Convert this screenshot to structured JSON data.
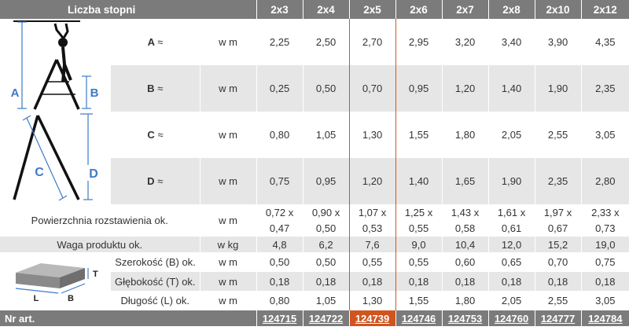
{
  "header": {
    "label": "Liczba stopni",
    "columns": [
      "2x3",
      "2x4",
      "2x5",
      "2x6",
      "2x7",
      "2x8",
      "2x10",
      "2x12"
    ]
  },
  "highlight_index": 2,
  "dimensions": [
    {
      "letter": "A",
      "approx": "≈",
      "unit": "w m",
      "values": [
        "2,25",
        "2,50",
        "2,70",
        "2,95",
        "3,20",
        "3,40",
        "3,90",
        "4,35"
      ]
    },
    {
      "letter": "B",
      "approx": "≈",
      "unit": "w m",
      "values": [
        "0,25",
        "0,50",
        "0,70",
        "0,95",
        "1,20",
        "1,40",
        "1,90",
        "2,35"
      ]
    },
    {
      "letter": "C",
      "approx": "≈",
      "unit": "w m",
      "values": [
        "0,80",
        "1,05",
        "1,30",
        "1,55",
        "1,80",
        "2,05",
        "2,55",
        "3,05"
      ]
    },
    {
      "letter": "D",
      "approx": "≈",
      "unit": "w m",
      "values": [
        "0,75",
        "0,95",
        "1,20",
        "1,40",
        "1,65",
        "1,90",
        "2,35",
        "2,80"
      ]
    }
  ],
  "area": {
    "label": "Powierzchnia rozstawienia ok.",
    "unit": "w m",
    "values": [
      [
        "0,72 x",
        "0,47"
      ],
      [
        "0,90 x",
        "0,50"
      ],
      [
        "1,07 x",
        "0,53"
      ],
      [
        "1,25 x",
        "0,55"
      ],
      [
        "1,43 x",
        "0,58"
      ],
      [
        "1,61 x",
        "0,61"
      ],
      [
        "1,97 x",
        "0,67"
      ],
      [
        "2,33 x",
        "0,73"
      ]
    ]
  },
  "weight": {
    "label": "Waga produktu ok.",
    "unit": "w kg",
    "values": [
      "4,8",
      "6,2",
      "7,6",
      "9,0",
      "10,4",
      "12,0",
      "15,2",
      "19,0"
    ]
  },
  "packaging": [
    {
      "label": "Szerokość (B) ok.",
      "unit": "w m",
      "values": [
        "0,50",
        "0,50",
        "0,55",
        "0,55",
        "0,60",
        "0,65",
        "0,70",
        "0,75"
      ]
    },
    {
      "label": "Głębokość (T) ok.",
      "unit": "w m",
      "values": [
        "0,18",
        "0,18",
        "0,18",
        "0,18",
        "0,18",
        "0,18",
        "0,18",
        "0,18"
      ]
    },
    {
      "label": "Długość (L) ok.",
      "unit": "w m",
      "values": [
        "0,80",
        "1,05",
        "1,30",
        "1,55",
        "1,80",
        "2,05",
        "2,55",
        "3,05"
      ]
    }
  ],
  "article": {
    "label": "Nr art.",
    "values": [
      "124715",
      "124722",
      "124739",
      "124746",
      "124753",
      "124760",
      "124777",
      "124784"
    ]
  },
  "diagram": {
    "ladder_letters": [
      "A",
      "B",
      "C",
      "D"
    ],
    "box_letters": [
      "T",
      "L",
      "B"
    ],
    "colors": {
      "accent": "#3d7ac7",
      "highlight": "#d0541f",
      "header": "#7b7b7b",
      "stripe": "#e6e6e6",
      "ladder": "#111111"
    }
  }
}
